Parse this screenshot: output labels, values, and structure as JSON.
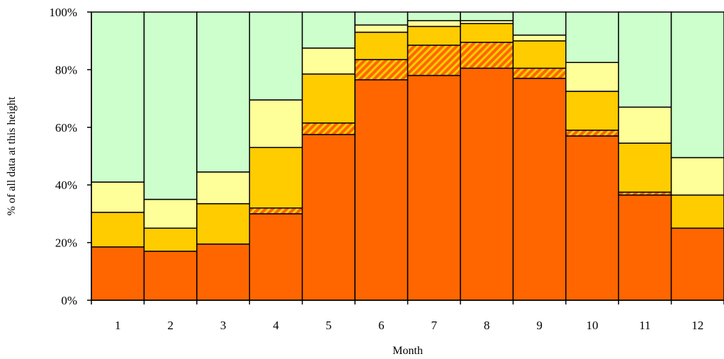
{
  "chart_data": {
    "type": "bar",
    "stacked": true,
    "percent_stacked": true,
    "title": "",
    "xlabel": "Month",
    "ylabel": "% of all data at this height",
    "ylim": [
      0,
      100
    ],
    "yticks": [
      "0%",
      "20%",
      "40%",
      "60%",
      "80%",
      "100%"
    ],
    "categories": [
      "1",
      "2",
      "3",
      "4",
      "5",
      "6",
      "7",
      "8",
      "9",
      "10",
      "11",
      "12"
    ],
    "series": [
      {
        "color": "#ff6600",
        "pattern": "solid",
        "values": [
          18.5,
          17.0,
          19.5,
          30.0,
          57.5,
          76.5,
          78.0,
          80.5,
          77.0,
          57.0,
          36.5,
          25.0
        ]
      },
      {
        "color": "#ff6600",
        "pattern": "hatched",
        "values": [
          0.0,
          0.0,
          0.0,
          2.0,
          4.0,
          7.0,
          10.5,
          9.0,
          3.5,
          2.0,
          1.0,
          0.0
        ]
      },
      {
        "color": "#ffcc00",
        "pattern": "solid",
        "values": [
          12.0,
          8.0,
          14.0,
          21.0,
          17.0,
          9.5,
          6.5,
          6.5,
          9.5,
          13.5,
          17.0,
          11.5
        ]
      },
      {
        "color": "#ffff99",
        "pattern": "solid",
        "values": [
          10.5,
          10.0,
          11.0,
          16.5,
          9.0,
          2.5,
          2.0,
          1.0,
          2.0,
          10.0,
          12.5,
          13.0
        ]
      },
      {
        "color": "#ccffcc",
        "pattern": "solid",
        "values": [
          59.0,
          65.0,
          55.5,
          30.5,
          12.5,
          4.5,
          3.0,
          3.0,
          8.0,
          17.5,
          33.0,
          50.5
        ]
      }
    ],
    "grid": false,
    "legend": "none"
  }
}
